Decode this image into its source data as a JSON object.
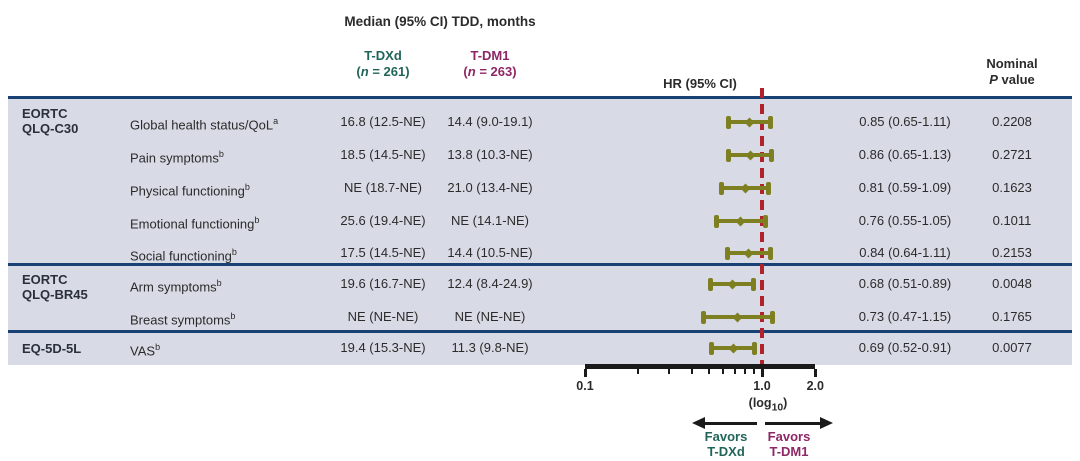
{
  "figure": {
    "title": "Median (95% CI) TDD, months",
    "header": {
      "tdxd_name": "T-DXd",
      "tdxd_n_open": "(",
      "tdxd_n_var": "n",
      "tdxd_n_rest": " = 261)",
      "tdm1_name": "T-DM1",
      "tdm1_n_open": "(",
      "tdm1_n_var": "n",
      "tdm1_n_rest": " = 263)",
      "hr_col": "HR (95% CI)",
      "p_col_line1": "Nominal",
      "p_col_italic": "P",
      "p_col_rest": " value"
    },
    "favors": {
      "left_line1": "Favors",
      "left_line2": "T-DXd",
      "right_line1": "Favors",
      "right_line2": "T-DM1"
    },
    "colors": {
      "tdxd_green": "#21655a",
      "tdm1_purple": "#8e2766",
      "marker_olive": "#7e7f21",
      "reference_red": "#b2222a",
      "rule_navy": "#1a4173",
      "band_grey": "#d8dbe5"
    }
  },
  "chart_data": {
    "type": "forest",
    "title": "Median (95% CI) TDD, months",
    "x_axis": {
      "scale": "log10",
      "min": 0.1,
      "max": 2.0,
      "reference": 1.0,
      "major_ticks": [
        {
          "value": 0.1,
          "label": "0.1"
        },
        {
          "value": 1.0,
          "label": "1.0"
        },
        {
          "value": 2.0,
          "label": "2.0"
        }
      ],
      "minor_ticks": [
        0.2,
        0.3,
        0.4,
        0.5,
        0.6,
        0.7,
        0.8,
        0.9
      ],
      "log_open": "(log",
      "log_sub": "10",
      "log_close": ")"
    },
    "groups": [
      {
        "name_lines": [
          "EORTC",
          "QLQ-C30"
        ],
        "rows": [
          {
            "endpoint": "Global health status/QoL",
            "sup": "a",
            "tdxd": "16.8 (12.5-NE)",
            "tdm1": "14.4 (9.0-19.1)",
            "hr": 0.85,
            "lo": 0.65,
            "hi": 1.11,
            "hr_text": "0.85 (0.65-1.11)",
            "p": "0.2208"
          },
          {
            "endpoint": "Pain symptoms",
            "sup": "b",
            "tdxd": "18.5 (14.5-NE)",
            "tdm1": "13.8 (10.3-NE)",
            "hr": 0.86,
            "lo": 0.65,
            "hi": 1.13,
            "hr_text": "0.86 (0.65-1.13)",
            "p": "0.2721"
          },
          {
            "endpoint": "Physical functioning",
            "sup": "b",
            "tdxd": "NE (18.7-NE)",
            "tdm1": "21.0 (13.4-NE)",
            "hr": 0.81,
            "lo": 0.59,
            "hi": 1.09,
            "hr_text": "0.81 (0.59-1.09)",
            "p": "0.1623"
          },
          {
            "endpoint": "Emotional functioning",
            "sup": "b",
            "tdxd": "25.6 (19.4-NE)",
            "tdm1": "NE (14.1-NE)",
            "hr": 0.76,
            "lo": 0.55,
            "hi": 1.05,
            "hr_text": "0.76 (0.55-1.05)",
            "p": "0.1011"
          },
          {
            "endpoint": "Social functioning",
            "sup": "b",
            "tdxd": "17.5 (14.5-NE)",
            "tdm1": "14.4 (10.5-NE)",
            "hr": 0.84,
            "lo": 0.64,
            "hi": 1.11,
            "hr_text": "0.84 (0.64-1.11)",
            "p": "0.2153"
          }
        ]
      },
      {
        "name_lines": [
          "EORTC",
          "QLQ-BR45"
        ],
        "rows": [
          {
            "endpoint": "Arm symptoms",
            "sup": "b",
            "tdxd": "19.6 (16.7-NE)",
            "tdm1": "12.4 (8.4-24.9)",
            "hr": 0.68,
            "lo": 0.51,
            "hi": 0.89,
            "hr_text": "0.68 (0.51-0.89)",
            "p": "0.0048"
          },
          {
            "endpoint": "Breast symptoms",
            "sup": "b",
            "tdxd": "NE (NE-NE)",
            "tdm1": "NE (NE-NE)",
            "hr": 0.73,
            "lo": 0.47,
            "hi": 1.15,
            "hr_text": "0.73 (0.47-1.15)",
            "p": "0.1765"
          }
        ]
      },
      {
        "name_lines": [
          "EQ-5D-5L"
        ],
        "rows": [
          {
            "endpoint": "VAS",
            "sup": "b",
            "tdxd": "19.4 (15.3-NE)",
            "tdm1": "11.3 (9.8-NE)",
            "hr": 0.69,
            "lo": 0.52,
            "hi": 0.91,
            "hr_text": "0.69 (0.52-0.91)",
            "p": "0.0077"
          }
        ]
      }
    ]
  }
}
